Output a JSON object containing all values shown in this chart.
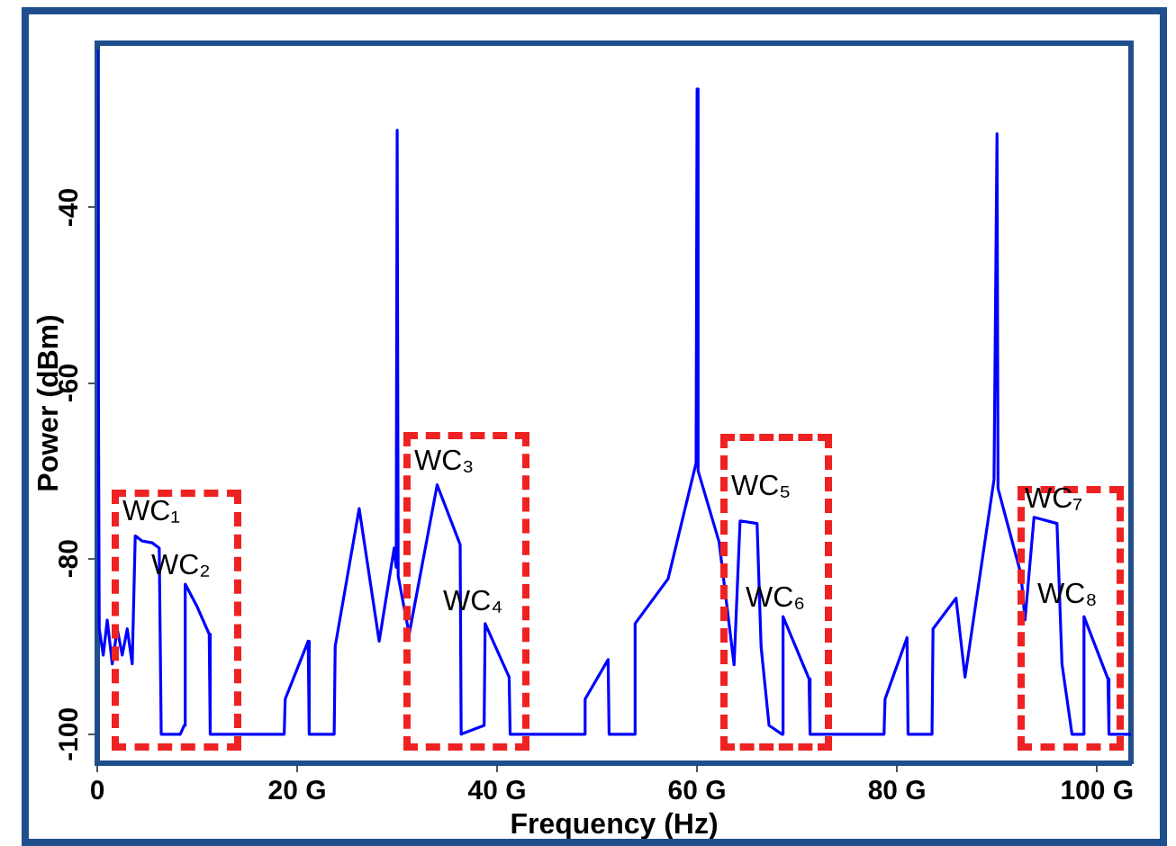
{
  "chart_data": {
    "type": "line",
    "xlabel": "Frequency (Hz)",
    "ylabel": "Power (dBm)",
    "xlim": [
      0,
      103.4
    ],
    "ylim": [
      -103.3,
      -21.3
    ],
    "xticks": [
      0,
      {
        "value": 20,
        "label": "20 G"
      },
      {
        "value": 40,
        "label": "40 G"
      },
      {
        "value": 60,
        "label": "60 G"
      },
      {
        "value": 80,
        "label": "80 G"
      },
      {
        "value": 100,
        "label": "100 G"
      }
    ],
    "yticks": [
      -100,
      -80,
      -60,
      -40
    ],
    "grid": false,
    "legend": false,
    "marker": "none",
    "line_style": "solid",
    "series": [
      {
        "color": "#0000ff",
        "x": [
          0,
          0.2,
          0.6,
          1.0,
          1.5,
          2.0,
          2.5,
          3.0,
          3.5,
          3.8,
          4.5,
          5.5,
          6.2,
          6.4,
          8.3,
          8.7,
          8.8,
          10,
          11.2,
          11.3,
          18.7,
          18.8,
          21.1,
          21.2,
          23.7,
          23.8,
          26.2,
          28.2,
          29.7,
          29.9,
          30.0,
          30.1,
          31.2,
          34.0,
          36.3,
          36.4,
          38.7,
          38.8,
          41.2,
          41.3,
          48.7,
          48.8,
          51.1,
          51.2,
          53.7,
          53.8,
          57.1,
          59.9,
          60.0,
          60.1,
          62.2,
          63.7,
          64.3,
          66.0,
          66.4,
          67.2,
          68.5,
          68.6,
          71.2,
          71.3,
          78.7,
          78.8,
          81.0,
          81.1,
          83.5,
          83.6,
          85.9,
          86.8,
          89.7,
          90.0,
          90.1,
          92.4,
          92.8,
          93.7,
          96.0,
          96.5,
          97.5,
          98.6,
          98.7,
          101.1,
          101.2,
          103.4
        ],
        "values": [
          -22,
          -88,
          -91,
          -87,
          -92,
          -88,
          -91,
          -88,
          -92,
          -77.4,
          -78,
          -78.2,
          -78.8,
          -100,
          -100,
          -99,
          -82.9,
          -85.5,
          -88.6,
          -100,
          -100,
          -96,
          -89.4,
          -100,
          -100,
          -90,
          -74.3,
          -89.4,
          -78.8,
          -81,
          -31.2,
          -82,
          -88.6,
          -71.6,
          -78.4,
          -100,
          -99,
          -87.4,
          -93.5,
          -100,
          -100,
          -96,
          -91.5,
          -100,
          -100,
          -87.4,
          -82.3,
          -69.1,
          -26.5,
          -70,
          -78.1,
          -92.1,
          -75.7,
          -76,
          -90,
          -99,
          -100,
          -86.6,
          -93.7,
          -100,
          -100,
          -96,
          -89,
          -100,
          -100,
          -88,
          -84.5,
          -93.5,
          -71,
          -31.6,
          -72,
          -81.8,
          -87,
          -75.3,
          -76,
          -92,
          -100,
          -100,
          -86.6,
          -93.7,
          -100,
          -100
        ]
      }
    ],
    "annotations": [
      "WC₁",
      "WC₂",
      "WC₃",
      "WC₄",
      "WC₅",
      "WC₆",
      "WC₇",
      "WC₈"
    ]
  }
}
